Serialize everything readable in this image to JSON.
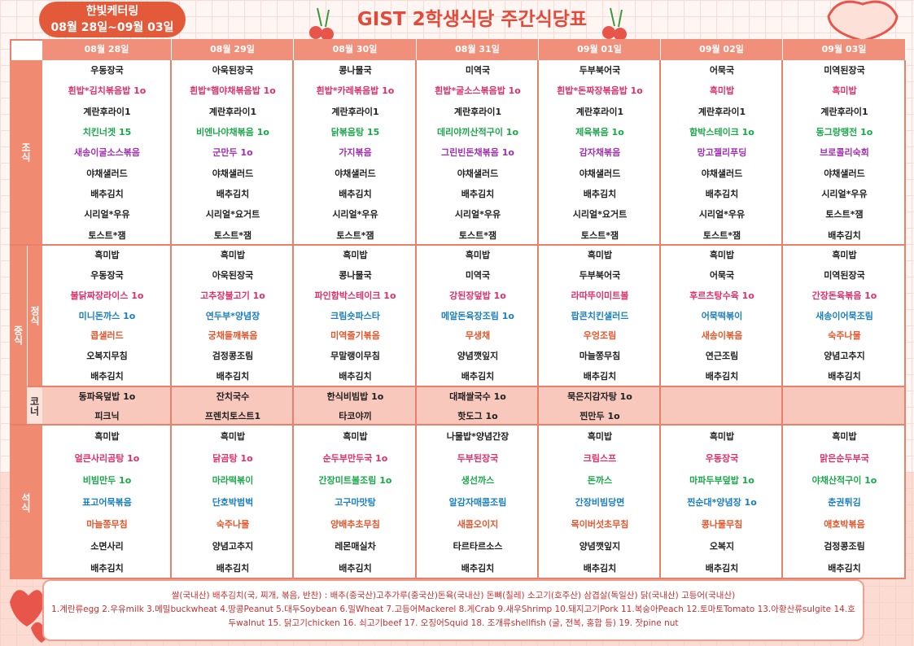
{
  "header": {
    "caterer": "한빛케터링",
    "period": "08월 28일~09월 03일",
    "title": "GIST 2학생식당 주간식당표"
  },
  "days": [
    "08월 28일",
    "08월 29일",
    "08월 30일",
    "08월 31일",
    "09월 01일",
    "09월 02일",
    "09월 03일"
  ],
  "breakfast": {
    "label": "조식",
    "row_colors": [
      "#222222",
      "#e0306a",
      "#222222",
      "#1aa84a",
      "#a030b0",
      "#222222",
      "#222222",
      "#222222",
      "#222222"
    ],
    "menus": [
      [
        "우동장국",
        "흰밥*김치볶음밥 1o",
        "계란후라이1",
        "치킨너겟 15",
        "새송이굴소스볶음",
        "야채샐러드",
        "배추김치",
        "시리얼*우유",
        "토스트*잼"
      ],
      [
        "아욱된장국",
        "흰밥*햄야채볶음밥 1o",
        "계란후라이1",
        "비엔나야채볶음 1o",
        "군만두 1o",
        "야채샐러드",
        "배추김치",
        "시리얼*요거트",
        "토스트*잼"
      ],
      [
        "콩나물국",
        "흰밥*카레볶음밥 1o",
        "계란후라이1",
        "닭볶음탕 15",
        "가지볶음",
        "야채샐러드",
        "배추김치",
        "시리얼*우유",
        "토스트*잼"
      ],
      [
        "미역국",
        "흰밥*굴소스볶음밥 1o",
        "계란후라이1",
        "데리야끼산적구이 1o",
        "그린빈돈채볶음 1o",
        "야채샐러드",
        "배추김치",
        "시리얼*우유",
        "토스트*잼"
      ],
      [
        "두부북어국",
        "흰밥*돈짜장볶음밥 1o",
        "계란후라이1",
        "제육볶음 1o",
        "감자채볶음",
        "야채샐러드",
        "배추김치",
        "시리얼*요거트",
        "토스트*잼"
      ],
      [
        "어묵국",
        "흑미밥",
        "계란후라이1",
        "함박스테이크 1o",
        "망고젤리푸딩",
        "야채샐러드",
        "배추김치",
        "시리얼*우유",
        "토스트*잼"
      ],
      [
        "미역된장국",
        "흑미밥",
        "계란후라이1",
        "동그랑땡전 1o",
        "브로콜리숙회",
        "야채샐러드",
        "시리얼*우유",
        "토스트*잼",
        "배추김치"
      ]
    ]
  },
  "lunch": {
    "label": "중식",
    "main": {
      "label": "정식",
      "row_colors": [
        "#222222",
        "#222222",
        "#e0306a",
        "#1a7fc0",
        "#e8552a",
        "#222222",
        "#222222"
      ],
      "menus": [
        [
          "흑미밥",
          "우동장국",
          "불닭짜장라이스 1o",
          "미니돈까스 1o",
          "콥샐러드",
          "오복지무침",
          "배추김치"
        ],
        [
          "흑미밥",
          "아욱된장국",
          "고추장불고기 1o",
          "연두부*양념장",
          "궁채들깨볶음",
          "검정콩조림",
          "배추김치"
        ],
        [
          "흑미밥",
          "콩나물국",
          "파인함박스테이크 1o",
          "크림숏파스타",
          "미역줄기볶음",
          "무말랭이무침",
          "배추김치"
        ],
        [
          "흑미밥",
          "미역국",
          "강된장덮밥 1o",
          "메알돈육장조림 1o",
          "무생채",
          "양념깻잎지",
          "배추김치"
        ],
        [
          "흑미밥",
          "두부북어국",
          "라따뚜이미트볼",
          "팝콘치킨샐러드",
          "우엉조림",
          "마늘쫑무침",
          "배추김치"
        ],
        [
          "흑미밥",
          "어묵국",
          "후르츠탕수육 1o",
          "어묵떡볶이",
          "새송이볶음",
          "연근조림",
          "배추김치"
        ],
        [
          "흑미밥",
          "미역된장국",
          "간장돈육볶음 1o",
          "새송이어묵조림",
          "숙주나물",
          "양념고추지",
          "배추김치"
        ]
      ]
    },
    "corner": {
      "label": "코너",
      "menus": [
        [
          "동파육덮밥 1o",
          "피크닉"
        ],
        [
          "잔치국수",
          "프렌치토스트1"
        ],
        [
          "한식비빔밥 1o",
          "타코야끼"
        ],
        [
          "대패쌀국수 1o",
          "핫도그 1o"
        ],
        [
          "묵은지감자탕 1o",
          "찐만두 1o"
        ],
        [],
        []
      ]
    }
  },
  "dinner": {
    "label": "석식",
    "row_colors": [
      "#222222",
      "#e0306a",
      "#1aa84a",
      "#1a7fc0",
      "#e8552a",
      "#222222",
      "#222222"
    ],
    "menus": [
      [
        "흑미밥",
        "얼큰사리곰탕 1o",
        "비빔만두 1o",
        "표고어묵볶음",
        "마늘쫑무침",
        "소면사리",
        "배추김치"
      ],
      [
        "흑미밥",
        "닭곰탕 1o",
        "마라떡볶이",
        "단호박범벅",
        "숙주나물",
        "양념고추지",
        "배추김치"
      ],
      [
        "흑미밥",
        "순두부만두국 1o",
        "간장미트볼조림 1o",
        "고구마맛탕",
        "양배추초무침",
        "레몬매실차",
        "배추김치"
      ],
      [
        "나물밥*양념간장",
        "두부된장국",
        "생선까스",
        "알감자매콤조림",
        "새콤오이지",
        "타르타르소스",
        "배추김치"
      ],
      [
        "흑미밥",
        "크림스프",
        "돈까스",
        "간장비빔당면",
        "목이버섯초무침",
        "양념깻잎지",
        "배추김치"
      ],
      [
        "흑미밥",
        "우동장국",
        "마파두부덮밥 1o",
        "찐순대*양념장 1o",
        "콩나물무침",
        "오복지",
        "배추김치"
      ],
      [
        "흑미밥",
        "맑은순두부국",
        "야채산적구이 1o",
        "춘권튀김",
        "애호박볶음",
        "검정콩조림",
        "배추김치"
      ]
    ]
  },
  "footer": {
    "origin": "쌀(국내산) 배추김치(국, 찌개, 볶음, 반찬) : 배추(중국산)고추가루(중국산)돈육(국내산) 돈뼈(칠레) 소고기(호주산) 삼겹살(독일산) 닭(국내산) 고등어(국내산)",
    "allergens": "1.계란류egg 2.우유milk 3.메밀buckwheat 4.땅콩Peanut 5.대두Soybean 6.밀Wheat 7.고등어Mackerel 8.게Crab 9.새우Shrimp 10.돼지고기Pork 11.복숭아Peach 12.토마토Tomato 13.아황산류sulgite 14.호두walnut 15. 닭고기chicken 16. 쇠고기beef 17. 오징어Squid 18. 조개류shellfish (굴, 전복, 홍합 등) 19. 잣pine nut"
  }
}
